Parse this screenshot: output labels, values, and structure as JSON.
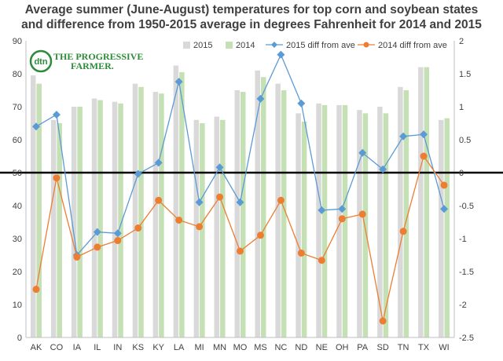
{
  "chart_data": {
    "type": "bar",
    "title_line1": "Average summer (June-August) temperatures for top corn and soybean states",
    "title_line2": "and difference from 1950-2015 average in degrees Fahrenheit for 2014 and 2015",
    "categories": [
      "AK",
      "CO",
      "IA",
      "IL",
      "IN",
      "KS",
      "KY",
      "LA",
      "MI",
      "MN",
      "MO",
      "MS",
      "NC",
      "ND",
      "NE",
      "OH",
      "PA",
      "SD",
      "TN",
      "TX",
      "WI"
    ],
    "left_axis": {
      "ylim": [
        0,
        90
      ],
      "ticks": [
        0,
        10,
        20,
        30,
        40,
        50,
        60,
        70,
        80,
        90
      ]
    },
    "right_axis": {
      "ylim": [
        -2.5,
        2
      ],
      "ticks": [
        "-2.5",
        "-2",
        "-1.5",
        "-1",
        "-0.5",
        "0",
        "0.5",
        "1",
        "1.5",
        "2"
      ]
    },
    "bar_series": [
      {
        "name": "2015",
        "color": "#d9d9d9",
        "axis": "left",
        "values": [
          79.5,
          66,
          70,
          72.5,
          71.5,
          77,
          74.5,
          82.5,
          66,
          67,
          75,
          81,
          77,
          68,
          71,
          70.5,
          69,
          70,
          76,
          82,
          66
        ]
      },
      {
        "name": "2014",
        "color": "#c5e0b4",
        "axis": "left",
        "values": [
          77,
          65,
          70,
          72,
          71,
          76,
          74,
          80.5,
          65,
          66,
          74.5,
          79,
          75,
          65.5,
          70.5,
          70.5,
          68,
          68,
          75,
          82,
          66.5
        ]
      }
    ],
    "line_series": [
      {
        "name": "2015 diff from ave",
        "color": "#5b9bd5",
        "marker": "diamond",
        "axis": "right",
        "values": [
          0.7,
          0.88,
          -1.25,
          -0.9,
          -0.92,
          -0.02,
          0.15,
          1.38,
          -0.45,
          0.08,
          -0.45,
          1.12,
          1.79,
          1.05,
          -0.57,
          -0.55,
          0.3,
          0.05,
          0.55,
          0.58,
          -0.55
        ]
      },
      {
        "name": "2014 diff from ave",
        "color": "#ed7d31",
        "marker": "circle",
        "axis": "right",
        "values": [
          -1.77,
          -0.08,
          -1.28,
          -1.13,
          -1.03,
          -0.84,
          -0.42,
          -0.72,
          -0.82,
          -0.37,
          -1.19,
          -0.95,
          -0.42,
          -1.22,
          -1.33,
          -0.7,
          -0.63,
          -2.25,
          -0.89,
          0.25,
          -0.19
        ]
      }
    ],
    "zero_line": {
      "axis": "right",
      "value": 0,
      "color": "#000000"
    },
    "legend_position": "top",
    "grid": false
  },
  "logo": {
    "dtn": "dtn",
    "line1": "The Progressive",
    "line2": "Farmer."
  }
}
